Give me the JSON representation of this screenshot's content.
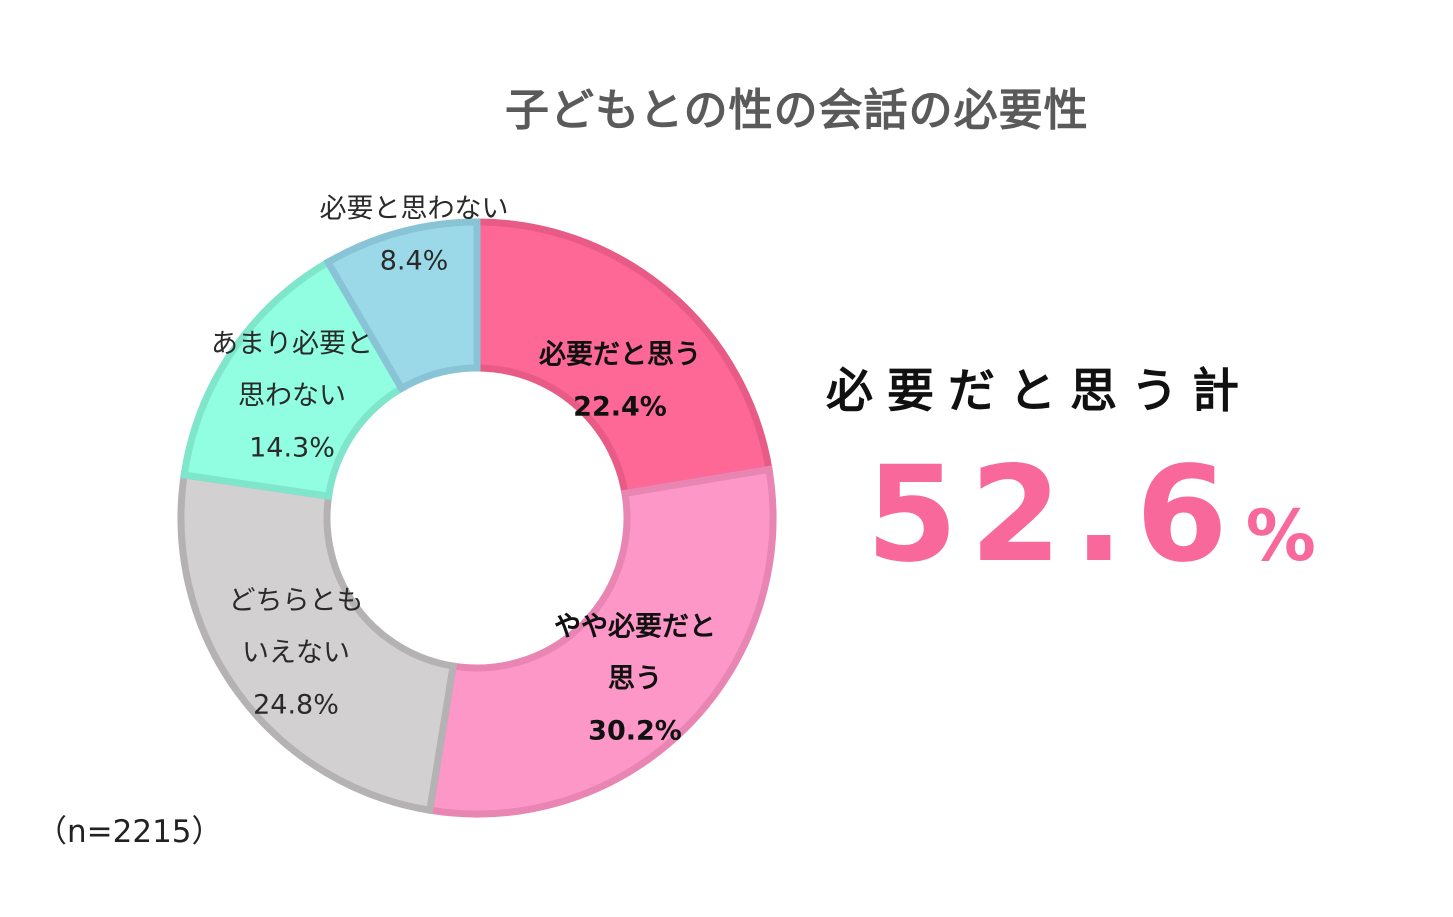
{
  "chart_data": {
    "type": "pie",
    "title": "子どもとの性の会話の必要性",
    "categories": [
      "必要だと思う",
      "やや必要だと思う",
      "どちらともいえない",
      "あまり必要と思わない",
      "必要と思わない"
    ],
    "values": [
      22.4,
      30.2,
      24.8,
      14.3,
      8.4
    ],
    "value_labels": [
      "22.4%",
      "30.2%",
      "24.8%",
      "14.3%",
      "8.4%"
    ],
    "label_lines": [
      [
        "必要だと思う"
      ],
      [
        "やや必要だと",
        "思う"
      ],
      [
        "どちらとも",
        "いえない"
      ],
      [
        "あまり必要と",
        "思わない"
      ],
      [
        "必要と思わない"
      ]
    ],
    "colors": [
      "#fd6896",
      "#fd97c7",
      "#d2d0d1",
      "#91fee2",
      "#9bd9e9"
    ],
    "stroke_colors": [
      "#e85b86",
      "#e985b3",
      "#b4b2b3",
      "#7fe6cc",
      "#88c4d6"
    ],
    "label_bold": [
      true,
      true,
      false,
      false,
      false
    ],
    "donut": true
  },
  "summary": {
    "label": "必要だと思う計",
    "value": "52.6",
    "unit": "%"
  },
  "sample_size": "（n=2215）"
}
